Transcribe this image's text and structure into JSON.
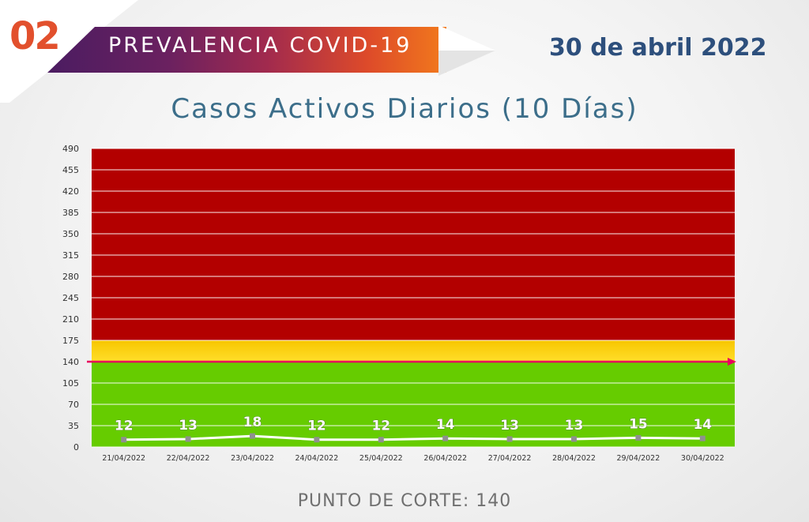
{
  "header": {
    "section_number": "02",
    "banner_title": "PREVALENCIA COVID-19",
    "date": "30 de abril 2022"
  },
  "footer": {
    "cut_point_label": "PUNTO DE CORTE: 140"
  },
  "colors": {
    "red_zone": "#b30000",
    "yellow_zone": "#f7c600",
    "green_zone": "#66cc00",
    "cut_line": "#e8005c",
    "series_line": "#ffffff",
    "marker": "#909090"
  },
  "chart_data": {
    "type": "line",
    "title": "Casos Activos Diarios (10 Días)",
    "categories": [
      "21/04/2022",
      "22/04/2022",
      "23/04/2022",
      "24/04/2022",
      "25/04/2022",
      "26/04/2022",
      "27/04/2022",
      "28/04/2022",
      "29/04/2022",
      "30/04/2022"
    ],
    "values": [
      12,
      13,
      18,
      12,
      12,
      14,
      13,
      13,
      15,
      14
    ],
    "yticks": [
      0,
      35,
      70,
      105,
      140,
      175,
      210,
      245,
      280,
      315,
      350,
      385,
      420,
      455,
      490
    ],
    "ylim": [
      0,
      490
    ],
    "zones": [
      {
        "from": 0,
        "to": 140,
        "color": "#66cc00"
      },
      {
        "from": 140,
        "to": 175,
        "color": "#f7c600"
      },
      {
        "from": 175,
        "to": 490,
        "color": "#b30000"
      }
    ],
    "cut_point": 140,
    "grid": true,
    "data_labels": true
  }
}
